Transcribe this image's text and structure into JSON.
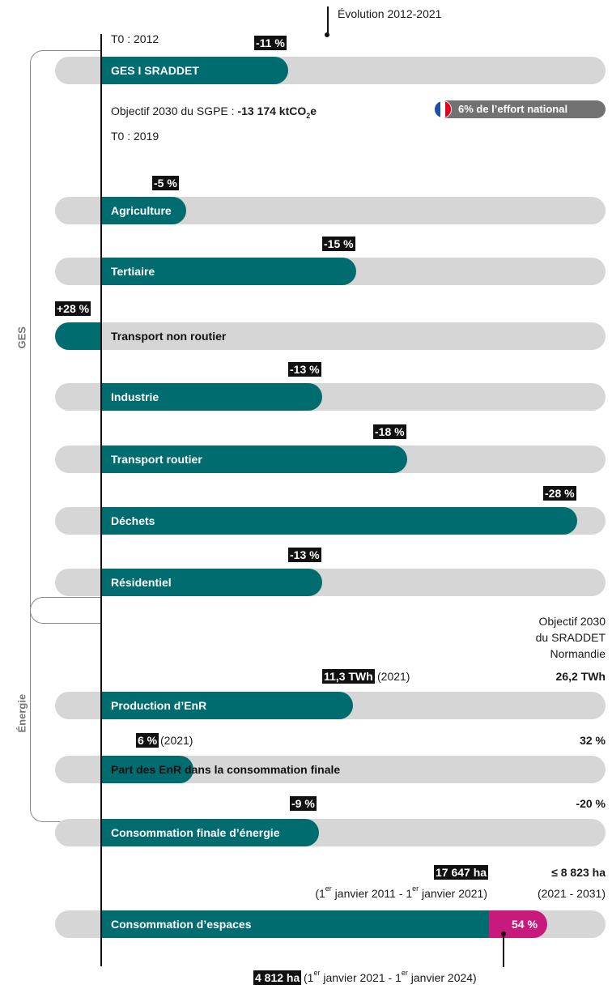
{
  "colors": {
    "teal": "#006c70",
    "track": "#d6d6d6",
    "magenta": "#c8197c",
    "pill": "#727272"
  },
  "header": {
    "evolution_label": "Évolution 2012-2021",
    "t0_2012": "T0 : 2012",
    "t0_2019": "T0 : 2019",
    "objectif_sgpe_prefix": "Objectif 2030 du SGPE : ",
    "objectif_sgpe_value": "-13 174 ktCO",
    "objectif_sgpe_sub": "2",
    "objectif_sgpe_unit": "e",
    "effort_pill": "6% de l’effort national",
    "flag_icon": "france-flag-icon"
  },
  "groups": {
    "ges": "GES",
    "energie": "Énergie"
  },
  "chart_data": [
    {
      "type": "bar",
      "title": "",
      "categories": [
        "GES I SRADDET",
        "Agriculture",
        "Tertiaire",
        "Transport non routier",
        "Industrie",
        "Transport routier",
        "Déchets",
        "Résidentiel"
      ],
      "values": [
        -11,
        -5,
        -15,
        28,
        -13,
        -18,
        -28,
        -13
      ],
      "labels": [
        "-11 %",
        "-5 %",
        "-15 %",
        "+28 %",
        "-13 %",
        "-18 %",
        "-28 %",
        "-13 %"
      ],
      "unit": "%"
    },
    {
      "type": "bar",
      "title": "",
      "objective_header": [
        "Objectif 2030",
        "du SRADDET",
        "Normandie"
      ],
      "categories": [
        "Production d’EnR",
        "Part des EnR dans la consommation finale",
        "Consommation finale d’énergie"
      ],
      "current_labels": [
        "11,3 TWh",
        "6 %",
        "-9 %"
      ],
      "current_years": [
        "(2021)",
        "(2021)",
        ""
      ],
      "current_values": [
        11.3,
        6,
        -9
      ],
      "objective_labels": [
        "26,2 TWh",
        "32 %",
        "-20 %"
      ],
      "objective_values": [
        26.2,
        32,
        -20
      ]
    },
    {
      "type": "bar",
      "title": "",
      "categories": [
        "Consommation d’espaces"
      ],
      "reference_label": "17 647 ha",
      "reference_value": 17647,
      "reference_period": "(1er janvier 2011 - 1er janvier 2021)",
      "objective_label": "≤ 8 823 ha",
      "objective_value": 8823,
      "objective_period": "(2021 - 2031)",
      "progress_label": "54 %",
      "progress_value": 54,
      "consumed_label": "4 812 ha",
      "consumed_value": 4812,
      "consumed_period": "(1er janvier 2021 - 1er janvier 2024)"
    }
  ]
}
